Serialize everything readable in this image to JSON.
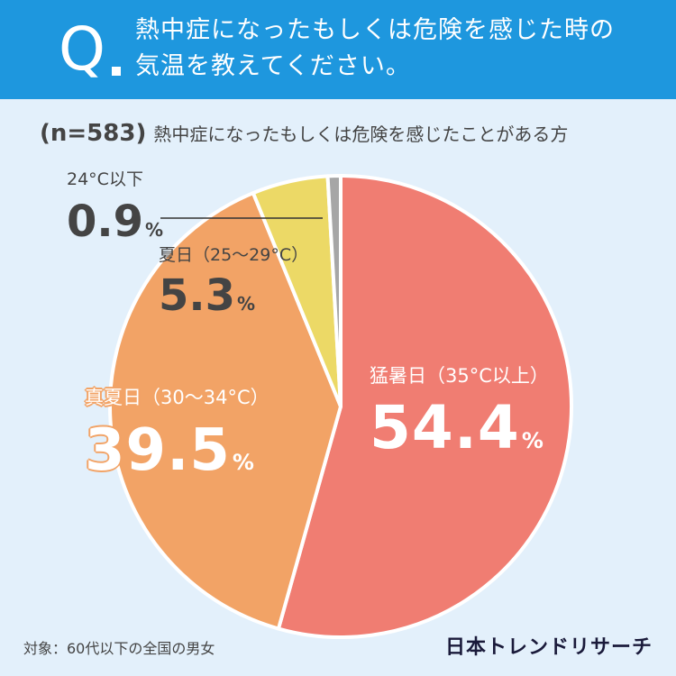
{
  "header": {
    "q_mark": "Q",
    "question_line1": "熱中症になったもしくは危険を感じた時の",
    "question_line2": "気温を教えてください。",
    "bg_color": "#1e97de"
  },
  "subtitle": {
    "n_label": "(n=583)",
    "text": "熱中症になったもしくは危険を感じたことがある方"
  },
  "chart_data": {
    "type": "pie",
    "title": "熱中症になったもしくは危険を感じた時の気温を教えてください。",
    "n": 583,
    "slices": [
      {
        "name": "猛暑日（35°C以上）",
        "value": 54.4,
        "value_label": "54.4",
        "color": "#f07d72"
      },
      {
        "name": "真夏日（30～34°C）",
        "value": 39.5,
        "value_label": "39.5",
        "color": "#f2a366"
      },
      {
        "name": "夏日（25～29°C）",
        "value": 5.3,
        "value_label": "5.3",
        "color": "#ecd966"
      },
      {
        "name": "24°C以下",
        "value": 0.9,
        "value_label": "0.9",
        "color": "#a6a6a6"
      }
    ],
    "percent_symbol": "%"
  },
  "footer": {
    "note": "対象：60代以下の全国の男女",
    "brand": "日本トレンドリサーチ"
  }
}
